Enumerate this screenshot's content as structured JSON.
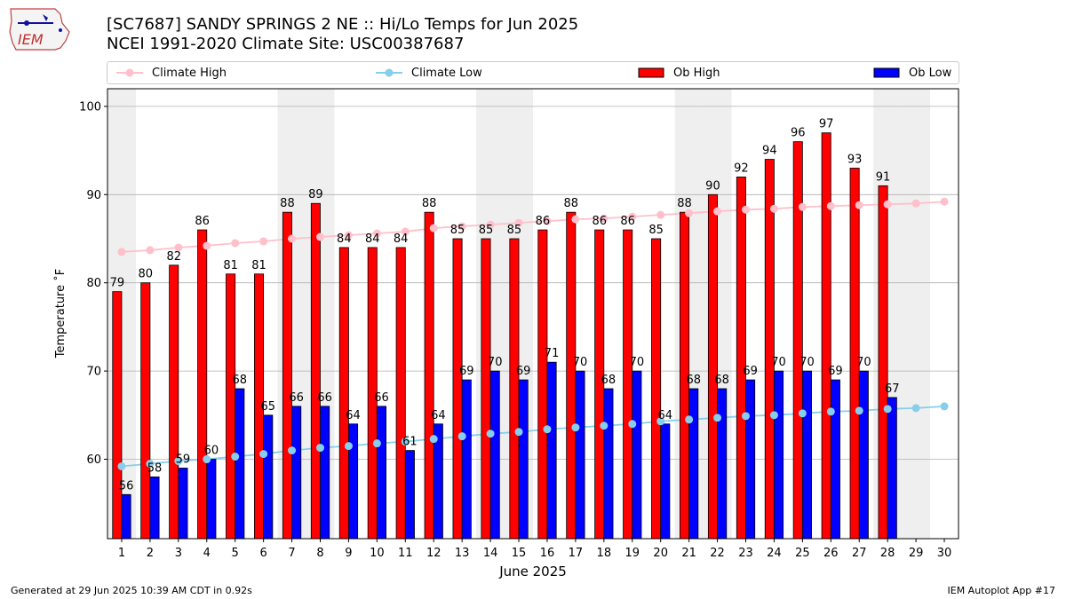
{
  "title": {
    "line1": "[SC7687] SANDY SPRINGS 2 NE :: Hi/Lo Temps for Jun 2025",
    "line2": "NCEI 1991-2020 Climate Site: USC00387687"
  },
  "logo": {
    "text": "IEM"
  },
  "footer": {
    "left": "Generated at 29 Jun 2025 10:39 AM CDT in 0.92s",
    "right": "IEM Autoplot App #17"
  },
  "colors": {
    "ob_high": "#ff0000",
    "ob_low": "#0000ff",
    "climate_high": "#ffc0cb",
    "climate_low": "#87ceeb",
    "weekend_band": "#efefef",
    "grid": "#b0b0b0"
  },
  "chart_data": {
    "type": "bar",
    "xlabel": "June 2025",
    "ylabel": "Temperature ˚F",
    "ylim": [
      51,
      102
    ],
    "yticks": [
      60,
      70,
      80,
      90,
      100
    ],
    "grid": "horizontal",
    "legend_position": "top",
    "categories": [
      "1",
      "2",
      "3",
      "4",
      "5",
      "6",
      "7",
      "8",
      "9",
      "10",
      "11",
      "12",
      "13",
      "14",
      "15",
      "16",
      "17",
      "18",
      "19",
      "20",
      "21",
      "22",
      "23",
      "24",
      "25",
      "26",
      "27",
      "28",
      "29",
      "30"
    ],
    "weekend_days": [
      1,
      7,
      8,
      14,
      15,
      21,
      22,
      28,
      29
    ],
    "series": [
      {
        "name": "Climate High",
        "kind": "line",
        "values": [
          83.5,
          83.7,
          84.0,
          84.2,
          84.5,
          84.7,
          85.0,
          85.2,
          85.4,
          85.6,
          85.8,
          86.2,
          86.4,
          86.6,
          86.8,
          87.0,
          87.2,
          87.3,
          87.5,
          87.7,
          87.9,
          88.1,
          88.3,
          88.4,
          88.6,
          88.7,
          88.8,
          88.9,
          89.0,
          89.2
        ]
      },
      {
        "name": "Climate Low",
        "kind": "line",
        "values": [
          59.2,
          59.5,
          59.8,
          60.0,
          60.3,
          60.6,
          61.0,
          61.3,
          61.5,
          61.8,
          62.0,
          62.3,
          62.6,
          62.9,
          63.1,
          63.4,
          63.6,
          63.8,
          64.0,
          64.3,
          64.5,
          64.7,
          64.9,
          65.0,
          65.2,
          65.4,
          65.5,
          65.7,
          65.8,
          66.0
        ]
      },
      {
        "name": "Ob High",
        "kind": "bar",
        "values": [
          79,
          80,
          82,
          86,
          81,
          81,
          88,
          89,
          84,
          84,
          84,
          88,
          85,
          85,
          85,
          86,
          88,
          86,
          86,
          85,
          88,
          90,
          92,
          94,
          96,
          97,
          93,
          91,
          null,
          null
        ]
      },
      {
        "name": "Ob Low",
        "kind": "bar",
        "values": [
          56,
          58,
          59,
          60,
          68,
          65,
          66,
          66,
          64,
          66,
          61,
          64,
          69,
          70,
          69,
          71,
          70,
          68,
          70,
          64,
          68,
          68,
          69,
          70,
          70,
          69,
          70,
          67,
          null,
          null
        ]
      }
    ]
  }
}
